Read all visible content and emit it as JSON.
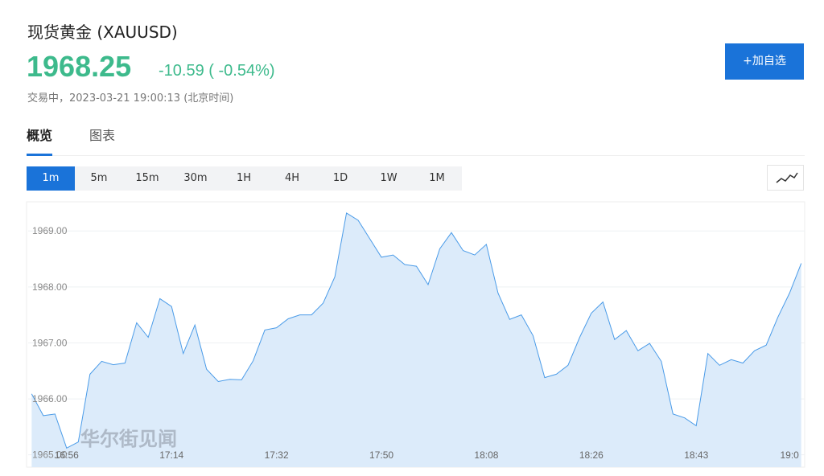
{
  "header": {
    "title": "现货黄金 (XAUUSD)",
    "price": "1968.25",
    "change": "-10.59 ( -0.54%)",
    "status": "交易中，2023-03-21 19:00:13 (北京时间)"
  },
  "button": "+加自选",
  "tabs": [
    "概览",
    "图表"
  ],
  "intervals": [
    "1m",
    "5m",
    "15m",
    "30m",
    "1H",
    "4H",
    "1D",
    "1W",
    "1M"
  ],
  "watermark": "华尔街见闻",
  "chart_data": {
    "type": "area",
    "color": "#4a9be8",
    "grid": true,
    "x": [
      1010,
      1012,
      1014,
      1016,
      1018,
      1020,
      1022,
      1024,
      1026,
      1028,
      1030,
      1032,
      1034,
      1036,
      1038,
      1040,
      1042,
      1044,
      1046,
      1048,
      1050,
      1052,
      1054,
      1056,
      1058,
      1060,
      1062,
      1064,
      1066,
      1068,
      1070,
      1072,
      1074,
      1076,
      1078,
      1080,
      1082,
      1084,
      1086,
      1088,
      1090,
      1092,
      1094,
      1096,
      1098,
      1100,
      1102,
      1104,
      1106,
      1108,
      1110,
      1112,
      1114,
      1116,
      1118,
      1120,
      1122,
      1124,
      1126,
      1128,
      1130,
      1132,
      1134,
      1136,
      1138,
      1140,
      1142
    ],
    "values": [
      1966.09,
      1965.7,
      1965.73,
      1965.12,
      1965.23,
      1966.44,
      1966.67,
      1966.61,
      1966.64,
      1967.36,
      1967.1,
      1967.79,
      1967.65,
      1966.81,
      1967.32,
      1966.53,
      1966.31,
      1966.35,
      1966.34,
      1966.68,
      1967.23,
      1967.27,
      1967.43,
      1967.5,
      1967.5,
      1967.71,
      1968.18,
      1969.32,
      1969.19,
      1968.86,
      1968.53,
      1968.57,
      1968.4,
      1968.37,
      1968.04,
      1968.68,
      1968.97,
      1968.65,
      1968.57,
      1968.76,
      1967.89,
      1967.42,
      1967.5,
      1967.13,
      1966.38,
      1966.44,
      1966.6,
      1967.1,
      1967.53,
      1967.73,
      1967.06,
      1967.22,
      1966.86,
      1966.99,
      1966.67,
      1965.73,
      1965.66,
      1965.52,
      1966.81,
      1966.6,
      1966.7,
      1966.64,
      1966.86,
      1966.96,
      1967.46,
      1967.89,
      1968.42
    ],
    "xlim": [
      1009.4,
      1142.6
    ],
    "xticks": [
      {
        "value": 1016,
        "label": "16:56"
      },
      {
        "value": 1034,
        "label": "17:14"
      },
      {
        "value": 1052,
        "label": "17:32"
      },
      {
        "value": 1070,
        "label": "17:50"
      },
      {
        "value": 1088,
        "label": "18:08"
      },
      {
        "value": 1106,
        "label": "18:26"
      },
      {
        "value": 1124,
        "label": "18:43"
      },
      {
        "value": 1140,
        "label": "19:0"
      }
    ],
    "ylim": [
      1964.78,
      1969.52
    ],
    "yticks": [
      {
        "value": 1965,
        "label": "1965.00"
      },
      {
        "value": 1966,
        "label": "1966.00"
      },
      {
        "value": 1967,
        "label": "1967.00"
      },
      {
        "value": 1968,
        "label": "1968.00"
      },
      {
        "value": 1969,
        "label": "1969.00"
      }
    ]
  }
}
